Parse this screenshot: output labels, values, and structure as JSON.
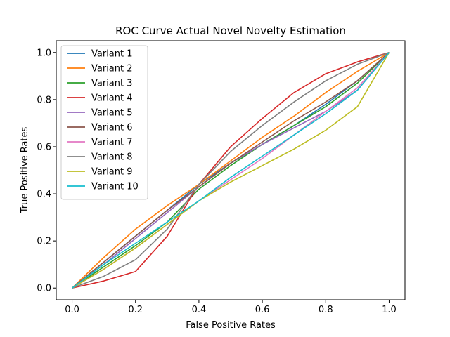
{
  "chart_data": {
    "type": "line",
    "title": "ROC Curve Actual Novel Novelty Estimation",
    "xlabel": "False Positive Rates",
    "ylabel": "True Positive Rates",
    "xlim": [
      -0.05,
      1.05
    ],
    "ylim": [
      -0.05,
      1.05
    ],
    "xticks": [
      "0.0",
      "0.2",
      "0.4",
      "0.6",
      "0.8",
      "1.0"
    ],
    "yticks": [
      "0.0",
      "0.2",
      "0.4",
      "0.6",
      "0.8",
      "1.0"
    ],
    "grid": false,
    "legend_position": "top-left",
    "x": [
      0.0,
      0.1,
      0.2,
      0.3,
      0.4,
      0.5,
      0.6,
      0.7,
      0.8,
      0.9,
      1.0
    ],
    "series": [
      {
        "name": "Variant 1",
        "color": "#1f77b4",
        "values": [
          0.0,
          0.11,
          0.22,
          0.33,
          0.44,
          0.53,
          0.61,
          0.69,
          0.78,
          0.88,
          1.0
        ]
      },
      {
        "name": "Variant 2",
        "color": "#ff7f0e",
        "values": [
          0.0,
          0.13,
          0.25,
          0.35,
          0.44,
          0.54,
          0.64,
          0.73,
          0.83,
          0.92,
          1.0
        ]
      },
      {
        "name": "Variant 3",
        "color": "#2ca02c",
        "values": [
          0.0,
          0.09,
          0.18,
          0.28,
          0.42,
          0.52,
          0.61,
          0.69,
          0.77,
          0.87,
          1.0
        ]
      },
      {
        "name": "Variant 4",
        "color": "#d62728",
        "values": [
          0.0,
          0.03,
          0.07,
          0.22,
          0.44,
          0.6,
          0.72,
          0.83,
          0.91,
          0.96,
          1.0
        ]
      },
      {
        "name": "Variant 5",
        "color": "#9467bd",
        "values": [
          0.0,
          0.1,
          0.21,
          0.32,
          0.43,
          0.53,
          0.61,
          0.68,
          0.75,
          0.84,
          1.0
        ]
      },
      {
        "name": "Variant 6",
        "color": "#8c564b",
        "values": [
          0.0,
          0.11,
          0.22,
          0.33,
          0.43,
          0.53,
          0.62,
          0.71,
          0.79,
          0.88,
          1.0
        ]
      },
      {
        "name": "Variant 7",
        "color": "#e377c2",
        "values": [
          0.0,
          0.08,
          0.17,
          0.27,
          0.37,
          0.46,
          0.55,
          0.65,
          0.75,
          0.85,
          1.0
        ]
      },
      {
        "name": "Variant 8",
        "color": "#7f7f7f",
        "values": [
          0.0,
          0.05,
          0.12,
          0.25,
          0.44,
          0.58,
          0.69,
          0.79,
          0.88,
          0.95,
          1.0
        ]
      },
      {
        "name": "Variant 9",
        "color": "#bcbd22",
        "values": [
          0.0,
          0.08,
          0.17,
          0.27,
          0.37,
          0.45,
          0.52,
          0.59,
          0.67,
          0.77,
          1.0
        ]
      },
      {
        "name": "Variant 10",
        "color": "#17becf",
        "values": [
          0.0,
          0.1,
          0.19,
          0.28,
          0.37,
          0.47,
          0.56,
          0.65,
          0.74,
          0.84,
          1.0
        ]
      }
    ]
  }
}
